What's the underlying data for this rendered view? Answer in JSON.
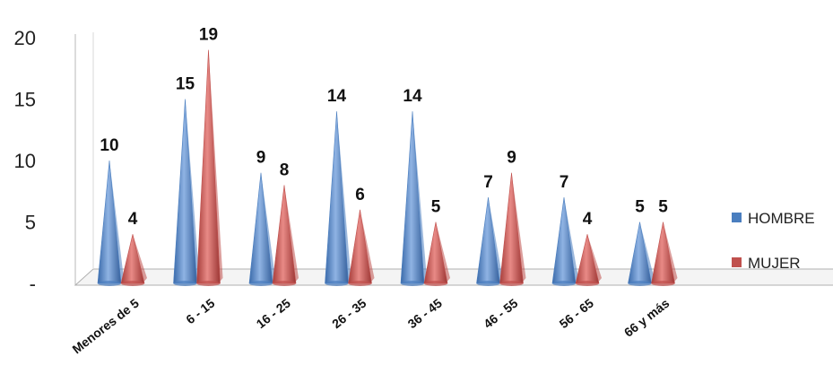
{
  "chart_data": {
    "type": "bar",
    "style": "3d-cone",
    "categories": [
      "Menores de 5",
      "6 - 15",
      "16 - 25",
      "26 - 35",
      "36 - 45",
      "46 - 55",
      "56 - 65",
      "66 y más"
    ],
    "series": [
      {
        "name": "HOMBRE",
        "values": [
          10,
          15,
          9,
          14,
          14,
          7,
          7,
          5
        ],
        "color": "#4a7ebf"
      },
      {
        "name": "MUJER",
        "values": [
          4,
          19,
          8,
          6,
          5,
          9,
          4,
          5
        ],
        "color": "#c0504d"
      }
    ],
    "y_tick_labels": [
      "-",
      "5",
      "10",
      "15",
      "20"
    ],
    "ylim": [
      0,
      20
    ],
    "legend_position": "right",
    "grid": false
  }
}
